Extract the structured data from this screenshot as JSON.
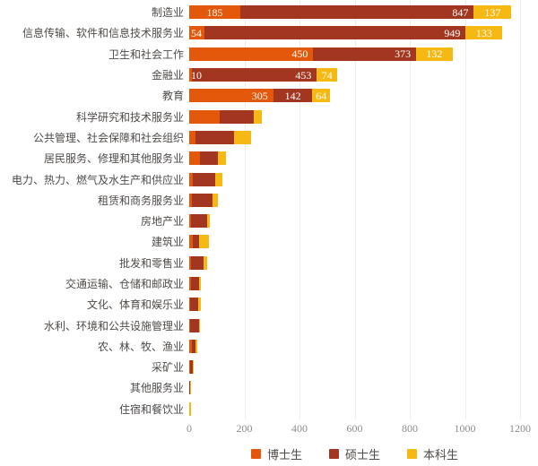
{
  "chart_data": {
    "type": "bar",
    "orientation": "horizontal",
    "stacked": true,
    "title": "",
    "xlabel": "",
    "ylabel": "",
    "xlim": [
      0,
      1200
    ],
    "x_ticks": [
      "0",
      "200",
      "400",
      "600",
      "800",
      "1000",
      "1200"
    ],
    "grid": "vertical-light",
    "gridline_color": "#edece8",
    "legend_position": "bottom",
    "series": [
      {
        "key": "doctoral",
        "name": "博士生",
        "color": "#e4580b"
      },
      {
        "key": "masters",
        "name": "硕士生",
        "color": "#a23620"
      },
      {
        "key": "undergrad",
        "name": "本科生",
        "color": "#f6b914"
      }
    ],
    "rows": [
      {
        "category": "制造业",
        "values": [
          185,
          847,
          137
        ],
        "labels": [
          "185",
          "847",
          "137"
        ],
        "label_align": [
          "center",
          "right",
          "center"
        ]
      },
      {
        "category": "信息传输、软件和信息技术服务业",
        "values": [
          54,
          949,
          133
        ],
        "labels": [
          "54",
          "949",
          "133"
        ],
        "label_align": [
          "left",
          "right",
          "center"
        ]
      },
      {
        "category": "卫生和社会工作",
        "values": [
          450,
          373,
          132
        ],
        "labels": [
          "450",
          "373",
          "132"
        ],
        "label_align": [
          "right",
          "right",
          "center"
        ]
      },
      {
        "category": "金融业",
        "values": [
          10,
          453,
          74
        ],
        "labels": [
          "10",
          "453",
          "74"
        ],
        "label_align": [
          "left",
          "right",
          "center"
        ]
      },
      {
        "category": "教育",
        "values": [
          305,
          142,
          64
        ],
        "labels": [
          "305",
          "142",
          "64"
        ],
        "label_align": [
          "right",
          "center",
          "center"
        ]
      },
      {
        "category": "科学研究和技术服务业",
        "values": [
          110,
          125,
          27
        ],
        "labels": null
      },
      {
        "category": "公共管理、社会保障和社会组织",
        "values": [
          24,
          138,
          62
        ],
        "labels": null
      },
      {
        "category": "居民服务、修理和其他服务业",
        "values": [
          40,
          65,
          27
        ],
        "labels": null
      },
      {
        "category": "电力、热力、燃气及水生产和供应业",
        "values": [
          13,
          80,
          27
        ],
        "labels": null
      },
      {
        "category": "租赁和商务服务业",
        "values": [
          11,
          72,
          21
        ],
        "labels": null
      },
      {
        "category": "房地产业",
        "values": [
          6,
          60,
          10
        ],
        "labels": null
      },
      {
        "category": "建筑业",
        "values": [
          12,
          25,
          33
        ],
        "labels": null
      },
      {
        "category": "批发和零售业",
        "values": [
          5,
          46,
          13
        ],
        "labels": null
      },
      {
        "category": "交通运输、仓储和邮政业",
        "values": [
          5,
          32,
          6
        ],
        "labels": null
      },
      {
        "category": "文化、体育和娱乐业",
        "values": [
          4,
          27,
          10
        ],
        "labels": null
      },
      {
        "category": "水利、环境和公共设施管理业",
        "values": [
          4,
          33,
          3
        ],
        "labels": null
      },
      {
        "category": "农、林、牧、渔业",
        "values": [
          10,
          13,
          6
        ],
        "labels": null
      },
      {
        "category": "采矿业",
        "values": [
          2,
          10,
          1
        ],
        "labels": null
      },
      {
        "category": "其他服务业",
        "values": [
          1,
          2,
          3
        ],
        "labels": null
      },
      {
        "category": "住宿和餐饮业",
        "values": [
          0,
          1,
          5
        ],
        "labels": null
      }
    ]
  }
}
